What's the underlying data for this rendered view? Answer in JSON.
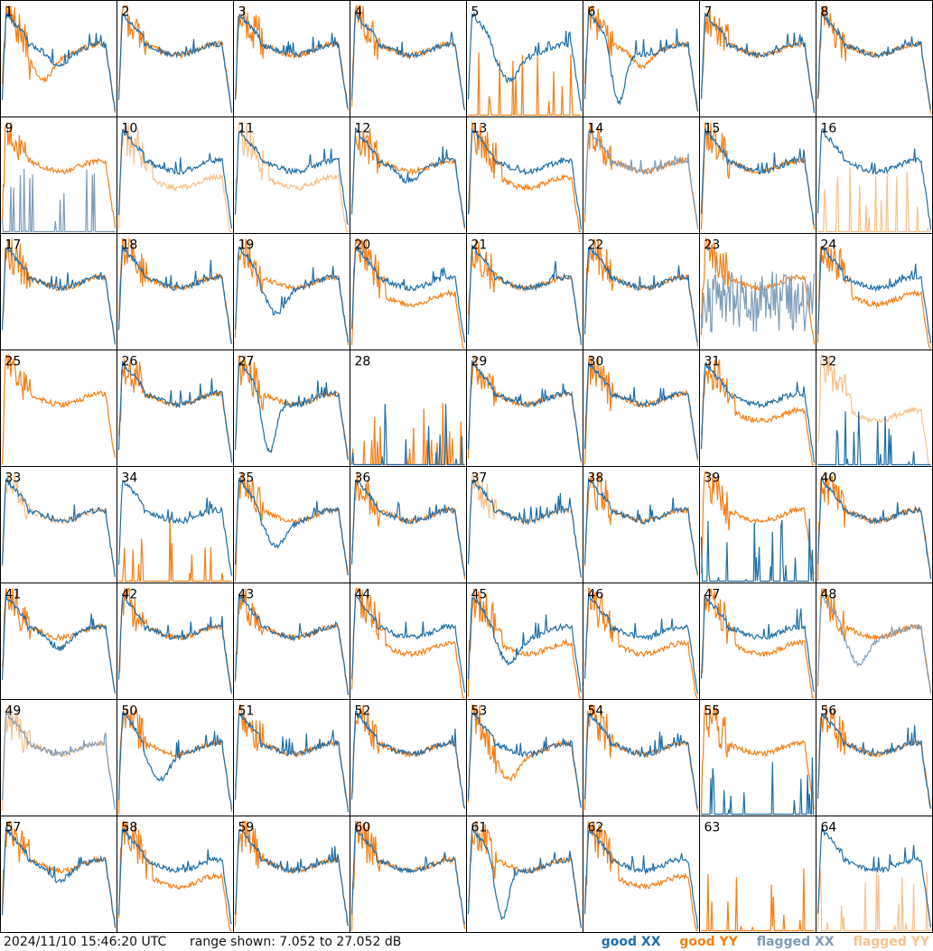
{
  "footer": {
    "timestamp": "2024/11/10 15:46:20 UTC",
    "range_text": "range shown: 7.052 to 27.052 dB"
  },
  "legend": {
    "good_xx": "good XX",
    "good_yy": "good YY",
    "flagged_xx": "flagged XX",
    "flagged_yy": "flagged YY"
  },
  "colors": {
    "good_xx": "#1f6ea8",
    "good_yy": "#f57f17",
    "flagged_xx": "#7f9cb8",
    "flagged_yy": "#f9c08c"
  },
  "chart_data": {
    "type": "line",
    "title": "",
    "grid_rows": 8,
    "grid_cols": 8,
    "ylim": [
      7.052,
      27.052
    ],
    "y_unit": "dB",
    "panels": [
      {
        "label": "1",
        "xx": "good",
        "yy": "good",
        "xx_shape": "mid",
        "yy_shape": "dip"
      },
      {
        "label": "2",
        "xx": "good",
        "yy": "good",
        "xx_shape": "flat",
        "yy_shape": "flat"
      },
      {
        "label": "3",
        "xx": "good",
        "yy": "good",
        "xx_shape": "flat",
        "yy_shape": "flat"
      },
      {
        "label": "4",
        "xx": "good",
        "yy": "good",
        "xx_shape": "flat",
        "yy_shape": "flat"
      },
      {
        "label": "5",
        "xx": "good",
        "yy": "good",
        "xx_shape": "dip",
        "yy_shape": "dead"
      },
      {
        "label": "6",
        "xx": "good",
        "yy": "good",
        "xx_shape": "deepdip",
        "yy_shape": "mid"
      },
      {
        "label": "7",
        "xx": "good",
        "yy": "good",
        "xx_shape": "flat",
        "yy_shape": "flat"
      },
      {
        "label": "8",
        "xx": "good",
        "yy": "good",
        "xx_shape": "flat",
        "yy_shape": "flat"
      },
      {
        "label": "9",
        "xx": "flagged",
        "yy": "good",
        "xx_shape": "dead",
        "yy_shape": "flat"
      },
      {
        "label": "10",
        "xx": "good",
        "yy": "flagged",
        "xx_shape": "flat",
        "yy_shape": "low"
      },
      {
        "label": "11",
        "xx": "good",
        "yy": "flagged",
        "xx_shape": "flat",
        "yy_shape": "low"
      },
      {
        "label": "12",
        "xx": "good",
        "yy": "good",
        "xx_shape": "mid",
        "yy_shape": "flat"
      },
      {
        "label": "13",
        "xx": "good",
        "yy": "good",
        "xx_shape": "flat",
        "yy_shape": "low"
      },
      {
        "label": "14",
        "xx": "flagged",
        "yy": "good",
        "xx_shape": "flat",
        "yy_shape": "flat"
      },
      {
        "label": "15",
        "xx": "good",
        "yy": "good",
        "xx_shape": "flat",
        "yy_shape": "flat"
      },
      {
        "label": "16",
        "xx": "good",
        "yy": "flagged",
        "xx_shape": "flat",
        "yy_shape": "dead"
      },
      {
        "label": "17",
        "xx": "good",
        "yy": "good",
        "xx_shape": "flat",
        "yy_shape": "flat"
      },
      {
        "label": "18",
        "xx": "good",
        "yy": "good",
        "xx_shape": "flat",
        "yy_shape": "flat"
      },
      {
        "label": "19",
        "xx": "good",
        "yy": "good",
        "xx_shape": "dip",
        "yy_shape": "flat"
      },
      {
        "label": "20",
        "xx": "good",
        "yy": "good",
        "xx_shape": "flat",
        "yy_shape": "low"
      },
      {
        "label": "21",
        "xx": "good",
        "yy": "good",
        "xx_shape": "flat",
        "yy_shape": "flat"
      },
      {
        "label": "22",
        "xx": "good",
        "yy": "good",
        "xx_shape": "flat",
        "yy_shape": "flat"
      },
      {
        "label": "23",
        "xx": "flagged",
        "yy": "good",
        "xx_shape": "noisy",
        "yy_shape": "flat"
      },
      {
        "label": "24",
        "xx": "good",
        "yy": "good",
        "xx_shape": "flat",
        "yy_shape": "low"
      },
      {
        "label": "25",
        "xx": "good",
        "yy": "good",
        "xx_shape": "none",
        "yy_shape": "flat"
      },
      {
        "label": "26",
        "xx": "good",
        "yy": "good",
        "xx_shape": "flat",
        "yy_shape": "flat"
      },
      {
        "label": "27",
        "xx": "good",
        "yy": "good",
        "xx_shape": "deepdip",
        "yy_shape": "flat"
      },
      {
        "label": "28",
        "xx": "good",
        "yy": "good",
        "xx_shape": "dead",
        "yy_shape": "dead"
      },
      {
        "label": "29",
        "xx": "good",
        "yy": "good",
        "xx_shape": "flat",
        "yy_shape": "flat"
      },
      {
        "label": "30",
        "xx": "good",
        "yy": "good",
        "xx_shape": "flat",
        "yy_shape": "flat"
      },
      {
        "label": "31",
        "xx": "good",
        "yy": "good",
        "xx_shape": "flat",
        "yy_shape": "low"
      },
      {
        "label": "32",
        "xx": "good",
        "yy": "flagged",
        "xx_shape": "dead",
        "yy_shape": "low"
      },
      {
        "label": "33",
        "xx": "good",
        "yy": "flagged",
        "xx_shape": "flat",
        "yy_shape": "flat"
      },
      {
        "label": "34",
        "xx": "good",
        "yy": "good",
        "xx_shape": "flat",
        "yy_shape": "dead"
      },
      {
        "label": "35",
        "xx": "good",
        "yy": "good",
        "xx_shape": "dip",
        "yy_shape": "flat"
      },
      {
        "label": "36",
        "xx": "good",
        "yy": "good",
        "xx_shape": "flat",
        "yy_shape": "flat"
      },
      {
        "label": "37",
        "xx": "good",
        "yy": "flagged",
        "xx_shape": "flat",
        "yy_shape": "flat"
      },
      {
        "label": "38",
        "xx": "good",
        "yy": "good",
        "xx_shape": "flat",
        "yy_shape": "flat"
      },
      {
        "label": "39",
        "xx": "good",
        "yy": "good",
        "xx_shape": "dead",
        "yy_shape": "flat"
      },
      {
        "label": "40",
        "xx": "good",
        "yy": "good",
        "xx_shape": "flat",
        "yy_shape": "flat"
      },
      {
        "label": "41",
        "xx": "good",
        "yy": "good",
        "xx_shape": "mid",
        "yy_shape": "flat"
      },
      {
        "label": "42",
        "xx": "good",
        "yy": "good",
        "xx_shape": "flat",
        "yy_shape": "flat"
      },
      {
        "label": "43",
        "xx": "good",
        "yy": "good",
        "xx_shape": "flat",
        "yy_shape": "flat"
      },
      {
        "label": "44",
        "xx": "good",
        "yy": "good",
        "xx_shape": "flat",
        "yy_shape": "low"
      },
      {
        "label": "45",
        "xx": "good",
        "yy": "good",
        "xx_shape": "dip",
        "yy_shape": "low"
      },
      {
        "label": "46",
        "xx": "good",
        "yy": "good",
        "xx_shape": "flat",
        "yy_shape": "low"
      },
      {
        "label": "47",
        "xx": "good",
        "yy": "good",
        "xx_shape": "flat",
        "yy_shape": "low"
      },
      {
        "label": "48",
        "xx": "flagged",
        "yy": "good",
        "xx_shape": "dip",
        "yy_shape": "flat"
      },
      {
        "label": "49",
        "xx": "flagged",
        "yy": "flagged",
        "xx_shape": "flat",
        "yy_shape": "flat"
      },
      {
        "label": "50",
        "xx": "good",
        "yy": "good",
        "xx_shape": "dip",
        "yy_shape": "flat"
      },
      {
        "label": "51",
        "xx": "good",
        "yy": "good",
        "xx_shape": "flat",
        "yy_shape": "flat"
      },
      {
        "label": "52",
        "xx": "good",
        "yy": "good",
        "xx_shape": "flat",
        "yy_shape": "flat"
      },
      {
        "label": "53",
        "xx": "good",
        "yy": "good",
        "xx_shape": "flat",
        "yy_shape": "dip"
      },
      {
        "label": "54",
        "xx": "good",
        "yy": "good",
        "xx_shape": "flat",
        "yy_shape": "flat"
      },
      {
        "label": "55",
        "xx": "good",
        "yy": "good",
        "xx_shape": "dead",
        "yy_shape": "flat"
      },
      {
        "label": "56",
        "xx": "good",
        "yy": "good",
        "xx_shape": "flat",
        "yy_shape": "flat"
      },
      {
        "label": "57",
        "xx": "good",
        "yy": "good",
        "xx_shape": "mid",
        "yy_shape": "flat"
      },
      {
        "label": "58",
        "xx": "good",
        "yy": "good",
        "xx_shape": "flat",
        "yy_shape": "low"
      },
      {
        "label": "59",
        "xx": "good",
        "yy": "good",
        "xx_shape": "flat",
        "yy_shape": "flat"
      },
      {
        "label": "60",
        "xx": "good",
        "yy": "good",
        "xx_shape": "flat",
        "yy_shape": "flat"
      },
      {
        "label": "61",
        "xx": "good",
        "yy": "good",
        "xx_shape": "deepdip",
        "yy_shape": "flat"
      },
      {
        "label": "62",
        "xx": "good",
        "yy": "good",
        "xx_shape": "flat",
        "yy_shape": "low"
      },
      {
        "label": "63",
        "xx": "good",
        "yy": "good",
        "xx_shape": "none",
        "yy_shape": "dead"
      },
      {
        "label": "64",
        "xx": "good",
        "yy": "flagged",
        "xx_shape": "flat",
        "yy_shape": "dead"
      }
    ]
  }
}
